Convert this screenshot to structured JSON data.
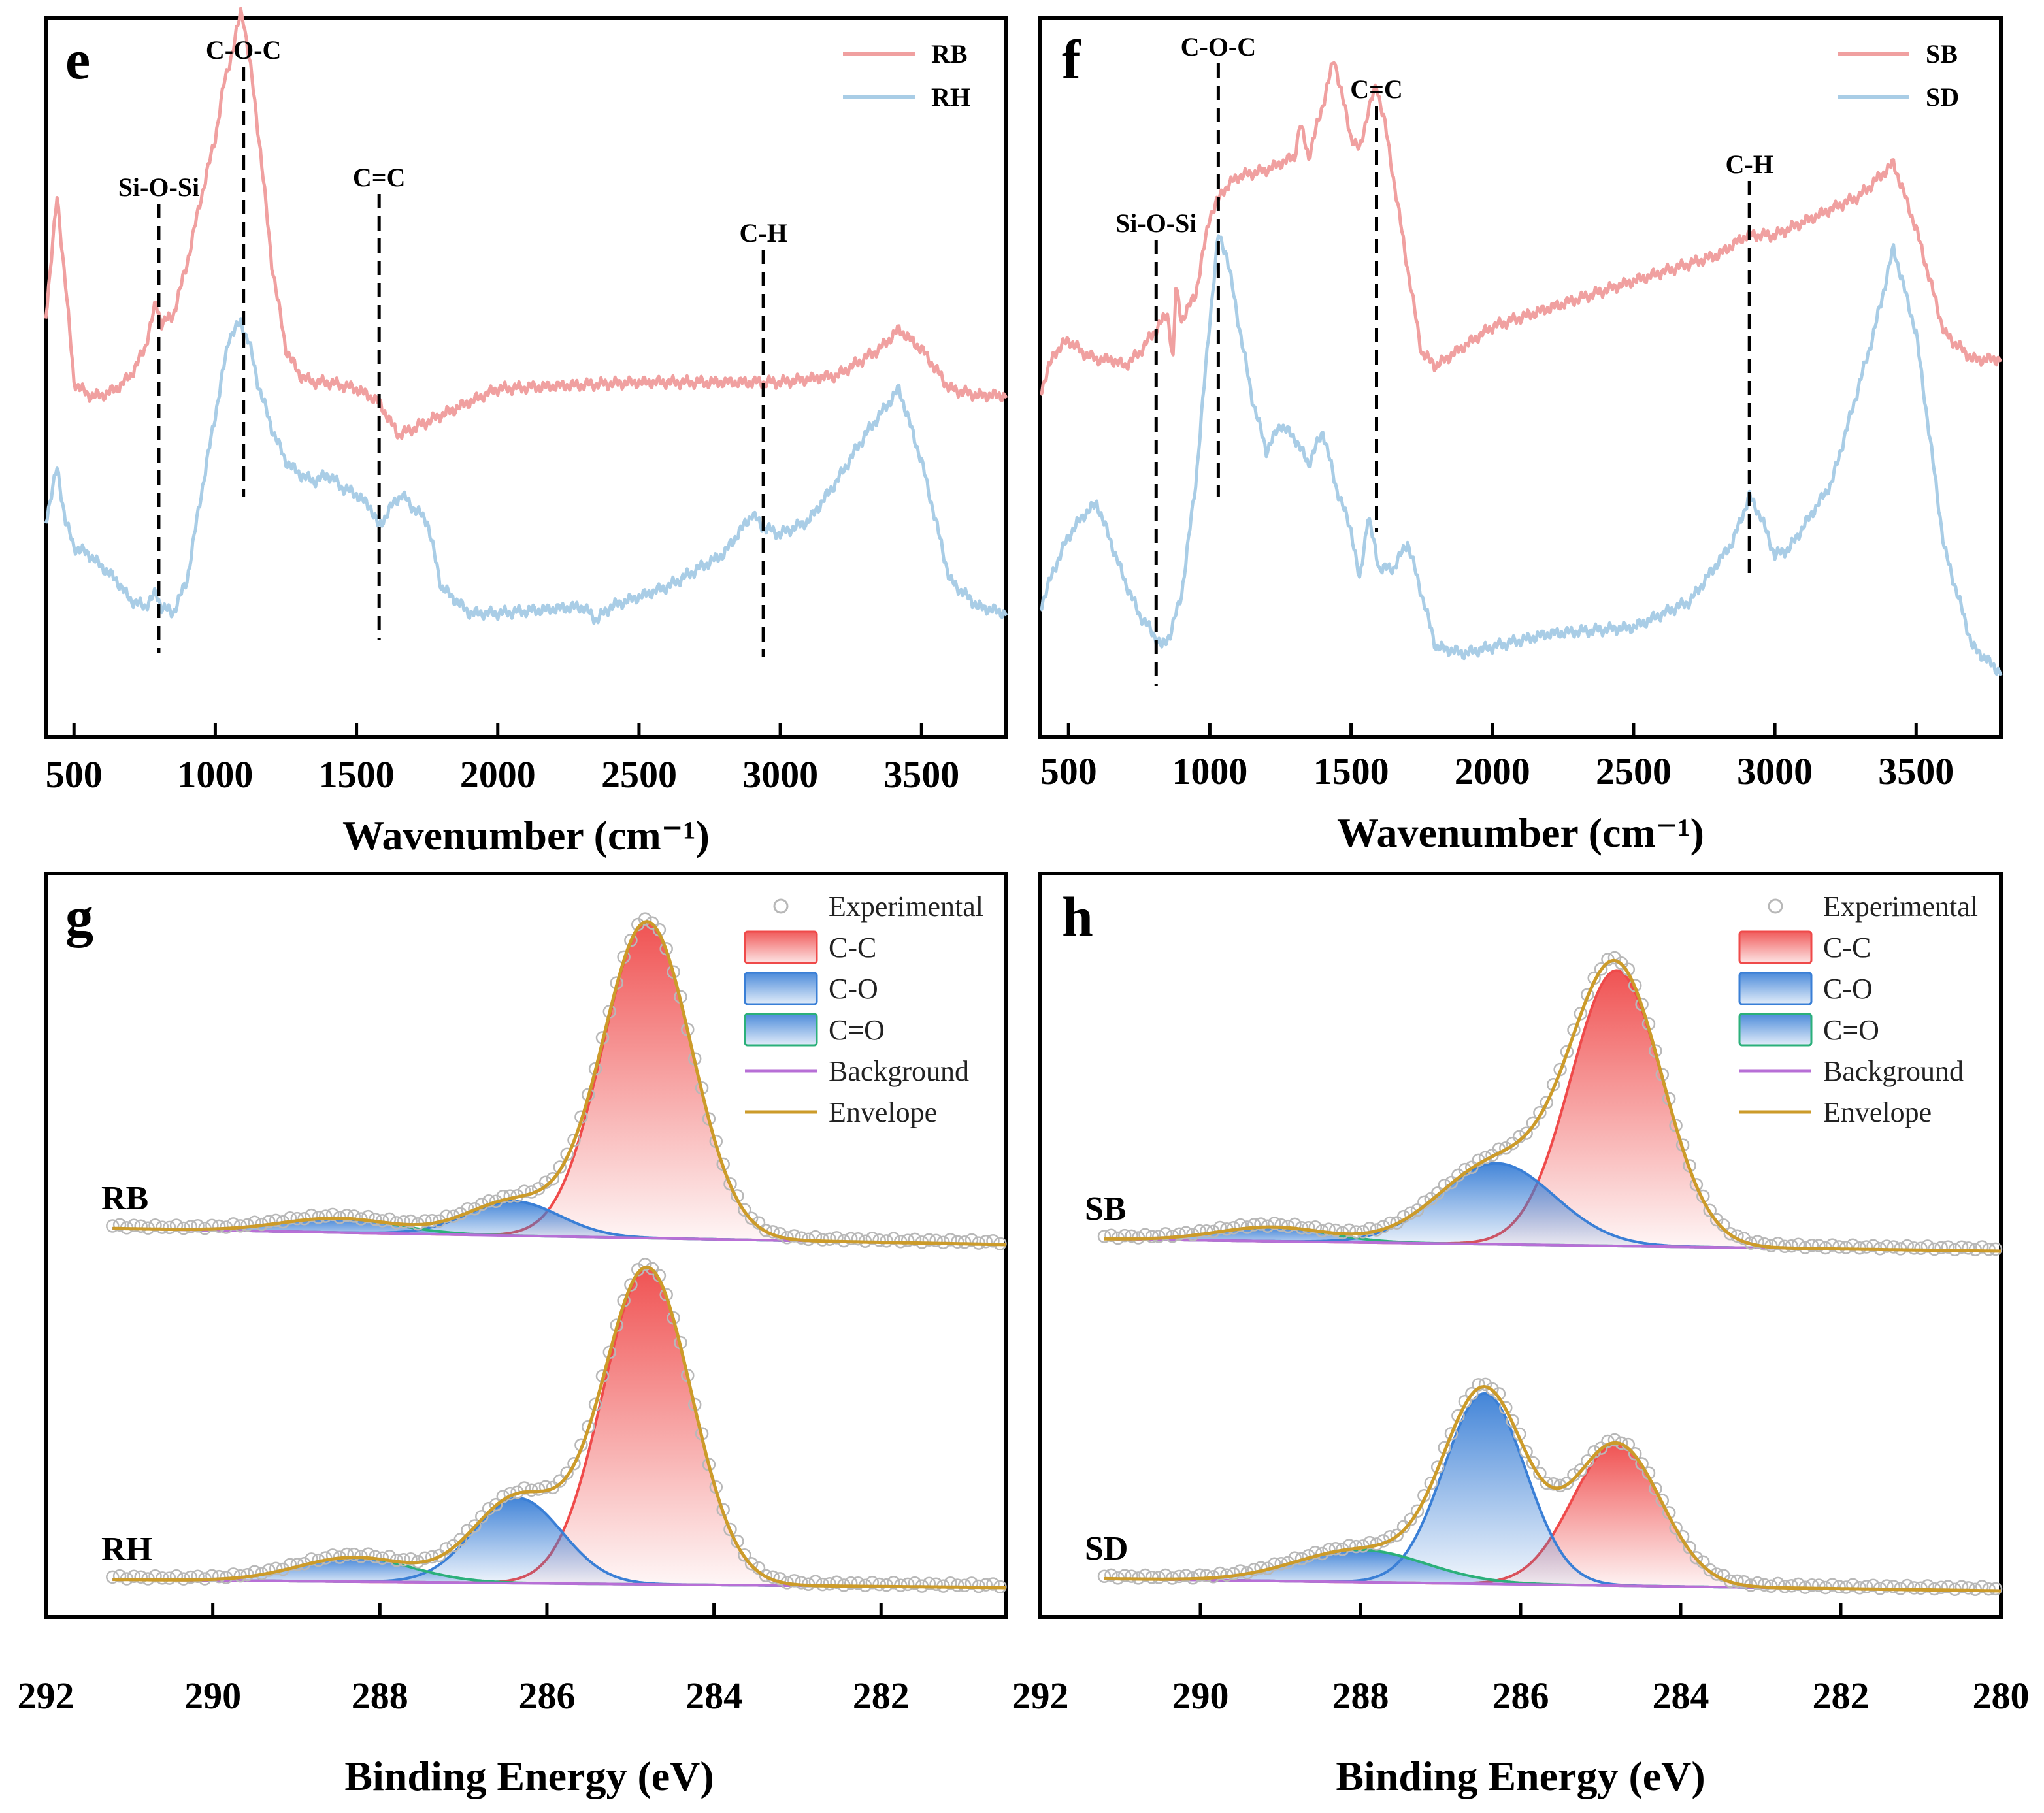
{
  "chart_data": [
    {
      "panel": "e",
      "type": "line",
      "xlabel": "Wavenumber (cm⁻¹)",
      "xlim": [
        400,
        3800
      ],
      "xticks": [
        500,
        1000,
        1500,
        2000,
        2500,
        3000,
        3500
      ],
      "legend": {
        "position": "top-right",
        "entries": [
          "RB",
          "RH"
        ]
      },
      "colors": {
        "RB": "#f0a0a0",
        "RH": "#a9cde6"
      },
      "annotations": [
        {
          "label": "Si-O-Si",
          "x": 800
        },
        {
          "label": "C-O-C",
          "x": 1100
        },
        {
          "label": "C=C",
          "x": 1580
        },
        {
          "label": "C-H",
          "x": 2940
        }
      ],
      "series": [
        {
          "name": "RB",
          "x": [
            400,
            440,
            470,
            500,
            550,
            600,
            650,
            700,
            750,
            790,
            810,
            850,
            900,
            950,
            1000,
            1030,
            1060,
            1090,
            1100,
            1130,
            1160,
            1200,
            1250,
            1300,
            1350,
            1400,
            1500,
            1580,
            1620,
            1650,
            1700,
            2000,
            2500,
            3000,
            3200,
            3350,
            3420,
            3500,
            3600,
            3700,
            3800
          ],
          "y": [
            0.6,
            0.78,
            0.65,
            0.5,
            0.48,
            0.48,
            0.49,
            0.51,
            0.55,
            0.62,
            0.59,
            0.6,
            0.68,
            0.78,
            0.87,
            0.95,
            1.0,
            1.06,
            1.05,
            0.96,
            0.85,
            0.68,
            0.55,
            0.51,
            0.5,
            0.5,
            0.49,
            0.47,
            0.44,
            0.42,
            0.43,
            0.49,
            0.5,
            0.5,
            0.51,
            0.55,
            0.58,
            0.55,
            0.49,
            0.48,
            0.48
          ]
        },
        {
          "name": "RH",
          "x": [
            400,
            440,
            470,
            500,
            550,
            600,
            650,
            700,
            750,
            790,
            810,
            850,
            900,
            950,
            1000,
            1050,
            1090,
            1120,
            1150,
            1200,
            1250,
            1300,
            1350,
            1400,
            1450,
            1500,
            1550,
            1580,
            1620,
            1660,
            1700,
            1750,
            1800,
            1900,
            2000,
            2300,
            2350,
            2400,
            2600,
            2800,
            2900,
            2940,
            3000,
            3100,
            3200,
            3300,
            3420,
            3500,
            3600,
            3700,
            3800
          ],
          "y": [
            0.29,
            0.37,
            0.29,
            0.25,
            0.24,
            0.22,
            0.2,
            0.17,
            0.16,
            0.18,
            0.16,
            0.15,
            0.2,
            0.33,
            0.45,
            0.57,
            0.59,
            0.56,
            0.5,
            0.43,
            0.38,
            0.36,
            0.35,
            0.36,
            0.34,
            0.33,
            0.31,
            0.28,
            0.31,
            0.33,
            0.31,
            0.29,
            0.19,
            0.15,
            0.15,
            0.16,
            0.14,
            0.16,
            0.19,
            0.24,
            0.3,
            0.28,
            0.27,
            0.29,
            0.35,
            0.42,
            0.49,
            0.38,
            0.2,
            0.16,
            0.15
          ]
        }
      ]
    },
    {
      "panel": "f",
      "type": "line",
      "xlabel": "Wavenumber (cm⁻¹)",
      "xlim": [
        400,
        3800
      ],
      "xticks": [
        500,
        1000,
        1500,
        2000,
        2500,
        3000,
        3500
      ],
      "legend": {
        "position": "top-right",
        "entries": [
          "SB",
          "SD"
        ]
      },
      "colors": {
        "SB": "#f0a0a0",
        "SD": "#a9cde6"
      },
      "annotations": [
        {
          "label": "Si-O-Si",
          "x": 810
        },
        {
          "label": "C-O-C",
          "x": 1030
        },
        {
          "label": "C=C",
          "x": 1590
        },
        {
          "label": "C-H",
          "x": 2910
        }
      ],
      "series": [
        {
          "name": "SB",
          "x": [
            400,
            450,
            500,
            550,
            600,
            650,
            700,
            750,
            800,
            850,
            870,
            880,
            900,
            950,
            1000,
            1050,
            1100,
            1200,
            1300,
            1320,
            1350,
            1400,
            1440,
            1470,
            1500,
            1530,
            1560,
            1590,
            1620,
            1700,
            1750,
            1800,
            2000,
            2500,
            2800,
            2900,
            3000,
            3300,
            3420,
            3500,
            3600,
            3700,
            3800
          ],
          "y": [
            0.49,
            0.55,
            0.57,
            0.55,
            0.54,
            0.54,
            0.53,
            0.55,
            0.58,
            0.61,
            0.54,
            0.65,
            0.6,
            0.64,
            0.76,
            0.8,
            0.82,
            0.83,
            0.85,
            0.9,
            0.85,
            0.93,
            1.0,
            0.94,
            0.88,
            0.86,
            0.92,
            0.96,
            0.9,
            0.68,
            0.55,
            0.53,
            0.59,
            0.66,
            0.7,
            0.73,
            0.73,
            0.79,
            0.84,
            0.74,
            0.58,
            0.54,
            0.54
          ]
        },
        {
          "name": "SD",
          "x": [
            400,
            450,
            500,
            550,
            600,
            650,
            700,
            750,
            800,
            830,
            860,
            900,
            950,
            1000,
            1030,
            1060,
            1100,
            1150,
            1200,
            1250,
            1300,
            1350,
            1400,
            1450,
            1500,
            1530,
            1560,
            1600,
            1650,
            1700,
            1750,
            1800,
            1900,
            2000,
            2200,
            2500,
            2700,
            2850,
            2910,
            2950,
            3000,
            3050,
            3200,
            3350,
            3420,
            3500,
            3600,
            3700,
            3800
          ],
          "y": [
            0.16,
            0.22,
            0.27,
            0.3,
            0.32,
            0.26,
            0.2,
            0.15,
            0.12,
            0.1,
            0.12,
            0.18,
            0.35,
            0.6,
            0.73,
            0.7,
            0.6,
            0.48,
            0.4,
            0.44,
            0.42,
            0.38,
            0.43,
            0.34,
            0.28,
            0.2,
            0.3,
            0.22,
            0.22,
            0.26,
            0.18,
            0.1,
            0.09,
            0.1,
            0.12,
            0.13,
            0.17,
            0.26,
            0.33,
            0.3,
            0.24,
            0.25,
            0.35,
            0.58,
            0.71,
            0.58,
            0.25,
            0.1,
            0.06
          ]
        }
      ]
    },
    {
      "panel": "g",
      "type": "area",
      "xlabel": "Binding Energy (eV)",
      "xlim": [
        292,
        280.5
      ],
      "xticks": [
        292,
        290,
        288,
        286,
        284,
        282
      ],
      "legend": {
        "position": "top-right",
        "entries": [
          "Experimental",
          "C-C",
          "C-O",
          "C=O",
          "Background",
          "Envelope"
        ]
      },
      "colors": {
        "Experimental": "#b8b8b8",
        "C-C": "#ef4a4a",
        "C-O": "#3a7fd6",
        "C=O": "#2bb07a",
        "Background": "#b76fd6",
        "Envelope": "#cc9b2a"
      },
      "samples": [
        {
          "name": "RB",
          "baseline": [
            0.04,
            0.0
          ],
          "peaks": [
            {
              "component": "C-C",
              "center": 284.8,
              "height": 0.78,
              "fwhm": 1.25
            },
            {
              "component": "C-O",
              "center": 286.4,
              "height": 0.085,
              "fwhm": 1.3
            },
            {
              "component": "C=O",
              "center": 288.5,
              "height": 0.035,
              "fwhm": 1.6
            }
          ]
        },
        {
          "name": "RH",
          "baseline": [
            0.02,
            0.0
          ],
          "peaks": [
            {
              "component": "C-C",
              "center": 284.8,
              "height": 0.78,
              "fwhm": 1.25
            },
            {
              "component": "C-O",
              "center": 286.35,
              "height": 0.21,
              "fwhm": 1.25
            },
            {
              "component": "C=O",
              "center": 288.3,
              "height": 0.06,
              "fwhm": 1.6
            }
          ]
        }
      ]
    },
    {
      "panel": "h",
      "type": "area",
      "xlabel": "Binding Energy (eV)",
      "xlim": [
        292,
        280
      ],
      "xticks": [
        292,
        290,
        288,
        286,
        284,
        282,
        280
      ],
      "legend": {
        "position": "top-right",
        "entries": [
          "Experimental",
          "C-C",
          "C-O",
          "C=O",
          "Background",
          "Envelope"
        ]
      },
      "colors": {
        "Experimental": "#b8b8b8",
        "C-C": "#ef4a4a",
        "C-O": "#3a7fd6",
        "C=O": "#2bb07a",
        "Background": "#b76fd6",
        "Envelope": "#cc9b2a"
      },
      "samples": [
        {
          "name": "SB",
          "baseline": [
            0.03,
            0.0
          ],
          "peaks": [
            {
              "component": "C-C",
              "center": 284.8,
              "height": 0.68,
              "fwhm": 1.35
            },
            {
              "component": "C-O",
              "center": 286.3,
              "height": 0.2,
              "fwhm": 1.7
            },
            {
              "component": "C=O",
              "center": 289.1,
              "height": 0.035,
              "fwhm": 1.6
            }
          ]
        },
        {
          "name": "SD",
          "baseline": [
            0.03,
            0.0
          ],
          "peaks": [
            {
              "component": "C-C",
              "center": 284.8,
              "height": 0.35,
              "fwhm": 1.3
            },
            {
              "component": "C-O",
              "center": 286.45,
              "height": 0.47,
              "fwhm": 1.2
            },
            {
              "component": "C=O",
              "center": 288.0,
              "height": 0.08,
              "fwhm": 1.9
            }
          ]
        }
      ]
    }
  ]
}
